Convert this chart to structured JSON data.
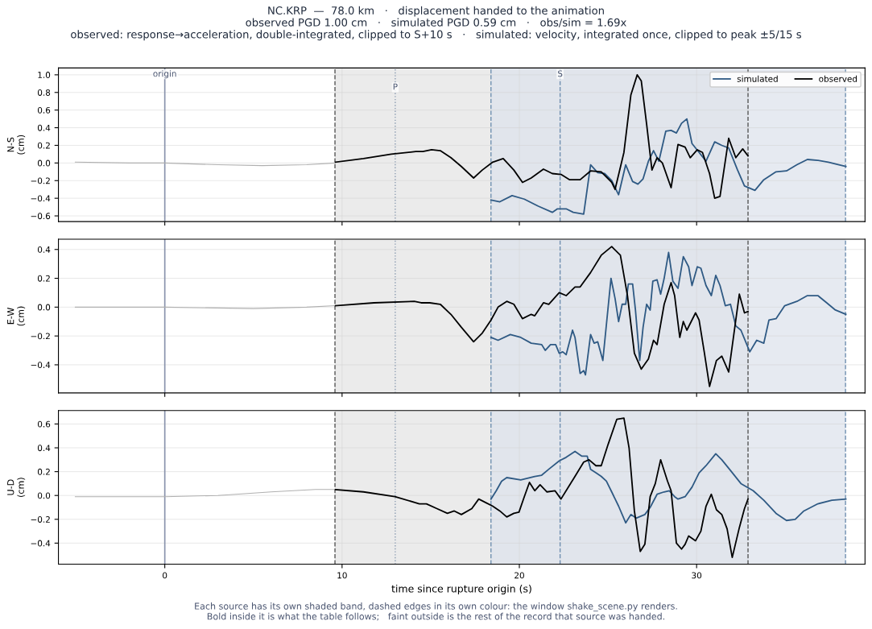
{
  "chart_data": [
    {
      "type": "line",
      "title": "NC.KRP  —  78.0 km   ·   displacement handed to the animation\nobserved PGD 1.00 cm   ·   simulated PGD 0.59 cm   ·   obs/sim = 1.69x\nobserved: response→acceleration, double-integrated, clipped to S+10 s   ·   simulated: velocity, integrated once, clipped to peak ±5/15 s",
      "ylabel": "N-S\n(cm)",
      "xlim": [
        -6.0,
        39.5
      ],
      "xticks": [
        0,
        10,
        20,
        30
      ],
      "ylim": [
        -0.665,
        1.078
      ],
      "yticks": [
        {
          "value": -0.6,
          "label": "−0.6"
        },
        {
          "value": -0.4,
          "label": "−0.4"
        },
        {
          "value": -0.2,
          "label": "−0.2"
        },
        {
          "value": 0,
          "label": "0.0"
        },
        {
          "value": 0.2,
          "label": "0.2"
        },
        {
          "value": 0.4,
          "label": "0.4"
        },
        {
          "value": 0.6,
          "label": "0.6"
        },
        {
          "value": 0.8,
          "label": "0.8"
        },
        {
          "value": 1,
          "label": "1.0"
        }
      ],
      "grid": true,
      "legend": "top right",
      "tick_labels": "y",
      "bands": [
        {
          "axis": "x",
          "from": 9.6,
          "to": 32.9,
          "color": "#e4e4e4"
        },
        {
          "axis": "x",
          "from": 18.4,
          "to": 38.4,
          "color": "#dde3ec"
        }
      ],
      "ref_lines": [
        {
          "axis": "x",
          "value": 0,
          "label": "origin",
          "color": "#8a94ad",
          "line_style": "solid"
        },
        {
          "axis": "x",
          "value": 13.0,
          "label": "P",
          "color": "#8a9bb0",
          "line_style": "dotted"
        },
        {
          "axis": "x",
          "value": 22.3,
          "label": "S",
          "color": "#6f8fb0",
          "line_style": "dashed"
        },
        {
          "axis": "x",
          "value": 9.6,
          "color": "#555555",
          "line_style": "dashed"
        },
        {
          "axis": "x",
          "value": 32.9,
          "color": "#555555",
          "line_style": "dashed"
        },
        {
          "axis": "x",
          "value": 18.4,
          "color": "#6f8fb0",
          "line_style": "dashed"
        },
        {
          "axis": "x",
          "value": 38.4,
          "color": "#6f8fb0",
          "line_style": "dashed"
        }
      ],
      "series": [
        {
          "color": "#b0b0b0",
          "x": [
            -5.05,
            -2,
            0,
            3,
            5.5,
            8,
            9.6
          ],
          "values": [
            0.01,
            0.0,
            0.0,
            -0.02,
            -0.03,
            -0.02,
            0.0
          ]
        },
        {
          "name": "simulated",
          "color": "#2f5a84",
          "x": [
            18.4,
            18.9,
            19.59,
            20.28,
            21.07,
            21.86,
            22.15,
            22.64,
            23.04,
            23.63,
            24.02,
            24.42,
            24.81,
            25.21,
            25.6,
            26.0,
            26.39,
            26.69,
            26.98,
            27.28,
            27.57,
            27.87,
            28.26,
            28.56,
            28.86,
            29.15,
            29.45,
            29.74,
            30.14,
            30.53,
            31.02,
            31.42,
            31.81,
            32.31,
            32.7,
            33.29,
            33.79,
            34.48,
            35.07,
            35.66,
            36.25,
            36.84,
            37.43,
            38.03,
            38.42
          ],
          "values": [
            -0.42,
            -0.44,
            -0.37,
            -0.41,
            -0.49,
            -0.56,
            -0.52,
            -0.52,
            -0.56,
            -0.58,
            -0.02,
            -0.11,
            -0.12,
            -0.2,
            -0.36,
            -0.02,
            -0.21,
            -0.24,
            -0.18,
            0.02,
            0.14,
            0.02,
            0.36,
            0.37,
            0.34,
            0.45,
            0.5,
            0.22,
            0.12,
            0.02,
            0.24,
            0.2,
            0.17,
            -0.08,
            -0.26,
            -0.31,
            -0.19,
            -0.1,
            -0.09,
            -0.02,
            0.04,
            0.03,
            0.01,
            -0.02,
            -0.04
          ]
        },
        {
          "name": "observed",
          "color": "#000000",
          "x": [
            9.63,
            11.21,
            12.78,
            14.16,
            14.56,
            15.05,
            15.54,
            16.14,
            16.73,
            17.42,
            17.91,
            18.5,
            19.09,
            19.69,
            20.18,
            20.67,
            21.36,
            21.86,
            22.35,
            22.84,
            23.43,
            24.02,
            24.62,
            25.21,
            25.4,
            25.9,
            26.29,
            26.65,
            26.88,
            27.18,
            27.48,
            27.77,
            28.07,
            28.56,
            28.95,
            29.35,
            29.64,
            30.04,
            30.33,
            30.73,
            31.02,
            31.32,
            31.81,
            32.21,
            32.6,
            32.9
          ],
          "values": [
            0.01,
            0.05,
            0.1,
            0.13,
            0.13,
            0.15,
            0.14,
            0.06,
            -0.04,
            -0.17,
            -0.08,
            0.01,
            0.05,
            -0.08,
            -0.22,
            -0.17,
            -0.07,
            -0.12,
            -0.13,
            -0.19,
            -0.19,
            -0.09,
            -0.1,
            -0.22,
            -0.3,
            0.12,
            0.77,
            1.0,
            0.93,
            0.44,
            -0.08,
            0.06,
            0.0,
            -0.28,
            0.21,
            0.18,
            0.06,
            0.15,
            0.12,
            -0.12,
            -0.4,
            -0.38,
            0.28,
            0.06,
            0.16,
            0.08
          ]
        }
      ]
    },
    {
      "type": "line",
      "ylabel": "E-W\n(cm)",
      "xlim": [
        -6.0,
        39.5
      ],
      "xticks": [
        0,
        10,
        20,
        30
      ],
      "ylim": [
        -0.595,
        0.471
      ],
      "yticks": [
        {
          "value": -0.4,
          "label": "−0.4"
        },
        {
          "value": -0.2,
          "label": "−0.2"
        },
        {
          "value": 0,
          "label": "0.0"
        },
        {
          "value": 0.2,
          "label": "0.2"
        },
        {
          "value": 0.4,
          "label": "0.4"
        }
      ],
      "grid": true,
      "tick_labels": "y",
      "bands": [
        {
          "axis": "x",
          "from": 9.6,
          "to": 32.9,
          "color": "#e4e4e4"
        },
        {
          "axis": "x",
          "from": 18.4,
          "to": 38.4,
          "color": "#dde3ec"
        }
      ],
      "ref_lines": [
        {
          "axis": "x",
          "value": 0,
          "color": "#8a94ad",
          "line_style": "solid"
        },
        {
          "axis": "x",
          "value": 13.0,
          "color": "#8a9bb0",
          "line_style": "dotted"
        },
        {
          "axis": "x",
          "value": 22.3,
          "color": "#6f8fb0",
          "line_style": "dashed"
        },
        {
          "axis": "x",
          "value": 9.6,
          "color": "#555555",
          "line_style": "dashed"
        },
        {
          "axis": "x",
          "value": 32.9,
          "color": "#555555",
          "line_style": "dashed"
        },
        {
          "axis": "x",
          "value": 18.4,
          "color": "#6f8fb0",
          "line_style": "dashed"
        },
        {
          "axis": "x",
          "value": 38.4,
          "color": "#6f8fb0",
          "line_style": "dashed"
        }
      ],
      "series": [
        {
          "color": "#b0b0b0",
          "x": [
            -5.05,
            0,
            5,
            8,
            9.6
          ],
          "values": [
            0.0,
            0.0,
            -0.01,
            0.0,
            0.01
          ]
        },
        {
          "color": "#2f5a84",
          "x": [
            18.4,
            18.8,
            19.49,
            20.08,
            20.67,
            21.26,
            21.46,
            21.76,
            22.05,
            22.25,
            22.45,
            22.64,
            23.0,
            23.14,
            23.43,
            23.63,
            23.73,
            24.02,
            24.22,
            24.42,
            24.71,
            25.17,
            25.4,
            25.6,
            25.8,
            26.0,
            26.15,
            26.39,
            26.55,
            26.79,
            26.98,
            27.18,
            27.38,
            27.53,
            27.77,
            27.97,
            28.17,
            28.42,
            28.66,
            28.95,
            29.25,
            29.55,
            29.74,
            30.04,
            30.24,
            30.53,
            30.83,
            31.08,
            31.32,
            31.62,
            31.91,
            32.21,
            32.5,
            33.0,
            33.39,
            33.79,
            34.08,
            34.48,
            34.97,
            35.66,
            36.25,
            36.84,
            37.34,
            37.83,
            38.42
          ],
          "values": [
            -0.21,
            -0.23,
            -0.19,
            -0.21,
            -0.25,
            -0.26,
            -0.3,
            -0.26,
            -0.26,
            -0.32,
            -0.31,
            -0.33,
            -0.16,
            -0.21,
            -0.46,
            -0.44,
            -0.47,
            -0.19,
            -0.25,
            -0.24,
            -0.37,
            0.2,
            0.06,
            -0.1,
            0.02,
            0.02,
            0.16,
            0.16,
            -0.02,
            -0.37,
            -0.14,
            0.02,
            -0.02,
            0.18,
            0.19,
            0.09,
            0.2,
            0.38,
            0.18,
            0.13,
            0.35,
            0.28,
            0.15,
            0.28,
            0.27,
            0.15,
            0.08,
            0.22,
            0.15,
            0.01,
            0.02,
            -0.13,
            -0.16,
            -0.31,
            -0.23,
            -0.25,
            -0.09,
            -0.08,
            0.01,
            0.04,
            0.08,
            0.08,
            0.03,
            -0.02,
            -0.05
          ]
        },
        {
          "color": "#000000",
          "x": [
            9.63,
            11.8,
            14.07,
            14.46,
            14.95,
            15.54,
            16.14,
            16.73,
            17.42,
            17.91,
            18.4,
            18.8,
            19.29,
            19.69,
            20.18,
            20.67,
            20.87,
            21.36,
            21.66,
            22.25,
            22.64,
            23.14,
            23.43,
            24.02,
            24.62,
            25.21,
            25.7,
            26.1,
            26.49,
            26.88,
            27.28,
            27.57,
            27.77,
            28.17,
            28.56,
            28.76,
            29.05,
            29.25,
            29.45,
            29.94,
            30.14,
            30.43,
            30.73,
            31.12,
            31.42,
            31.81,
            32.41,
            32.7,
            32.9
          ],
          "values": [
            0.01,
            0.03,
            0.04,
            0.03,
            0.03,
            0.02,
            -0.05,
            -0.14,
            -0.24,
            -0.18,
            -0.09,
            0.0,
            0.04,
            0.02,
            -0.08,
            -0.05,
            -0.06,
            0.03,
            0.02,
            0.1,
            0.08,
            0.14,
            0.14,
            0.24,
            0.36,
            0.42,
            0.36,
            0.08,
            -0.32,
            -0.43,
            -0.36,
            -0.23,
            -0.26,
            0.02,
            0.17,
            0.08,
            -0.21,
            -0.1,
            -0.16,
            -0.04,
            -0.09,
            -0.31,
            -0.55,
            -0.37,
            -0.34,
            -0.45,
            0.09,
            -0.04,
            -0.03
          ]
        }
      ]
    },
    {
      "type": "line",
      "ylabel": "U-D\n(cm)",
      "xlabel": "time since rupture origin (s)",
      "xlim": [
        -6.0,
        39.5
      ],
      "xticks": [
        0,
        10,
        20,
        30
      ],
      "ylim": [
        -0.577,
        0.713
      ],
      "yticks": [
        {
          "value": -0.4,
          "label": "−0.4"
        },
        {
          "value": -0.2,
          "label": "−0.2"
        },
        {
          "value": 0,
          "label": "0.0"
        },
        {
          "value": 0.2,
          "label": "0.2"
        },
        {
          "value": 0.4,
          "label": "0.4"
        },
        {
          "value": 0.6,
          "label": "0.6"
        }
      ],
      "grid": true,
      "annotations": [
        "Each source has its own shaded band, dashed edges in its own colour: the window shake_scene.py renders.\nBold inside it is what the table follows;   faint outside is the rest of the record that source was handed."
      ],
      "bands": [
        {
          "axis": "x",
          "from": 9.6,
          "to": 32.9,
          "color": "#e4e4e4"
        },
        {
          "axis": "x",
          "from": 18.4,
          "to": 38.4,
          "color": "#dde3ec"
        }
      ],
      "ref_lines": [
        {
          "axis": "x",
          "value": 0,
          "color": "#8a94ad",
          "line_style": "solid"
        },
        {
          "axis": "x",
          "value": 13.0,
          "color": "#8a9bb0",
          "line_style": "dotted"
        },
        {
          "axis": "x",
          "value": 22.3,
          "color": "#6f8fb0",
          "line_style": "dashed"
        },
        {
          "axis": "x",
          "value": 9.6,
          "color": "#555555",
          "line_style": "dashed"
        },
        {
          "axis": "x",
          "value": 32.9,
          "color": "#555555",
          "line_style": "dashed"
        },
        {
          "axis": "x",
          "value": 18.4,
          "color": "#6f8fb0",
          "line_style": "dashed"
        },
        {
          "axis": "x",
          "value": 38.4,
          "color": "#6f8fb0",
          "line_style": "dashed"
        }
      ],
      "series": [
        {
          "color": "#b0b0b0",
          "x": [
            -5.05,
            0,
            3,
            6,
            8.5,
            9.6
          ],
          "values": [
            -0.01,
            -0.01,
            0.0,
            0.03,
            0.05,
            0.05
          ]
        },
        {
          "color": "#2f5a84",
          "x": [
            18.4,
            18.7,
            19.0,
            19.29,
            20.08,
            20.87,
            21.26,
            21.66,
            22.25,
            22.64,
            23.14,
            23.53,
            23.83,
            24.02,
            24.32,
            24.62,
            24.91,
            25.21,
            25.6,
            26.0,
            26.29,
            26.59,
            27.08,
            27.38,
            27.77,
            28.17,
            28.46,
            28.76,
            28.95,
            29.35,
            29.74,
            30.14,
            30.53,
            31.08,
            31.42,
            31.91,
            32.5,
            33.19,
            33.79,
            34.48,
            35.07,
            35.56,
            36.05,
            36.84,
            37.63,
            38.42
          ],
          "values": [
            -0.03,
            0.04,
            0.12,
            0.15,
            0.13,
            0.16,
            0.17,
            0.22,
            0.29,
            0.32,
            0.37,
            0.33,
            0.33,
            0.22,
            0.19,
            0.16,
            0.12,
            0.03,
            -0.09,
            -0.23,
            -0.16,
            -0.19,
            -0.16,
            -0.1,
            0.01,
            0.03,
            0.04,
            -0.01,
            -0.03,
            -0.01,
            0.07,
            0.19,
            0.25,
            0.35,
            0.3,
            0.21,
            0.1,
            0.04,
            -0.04,
            -0.15,
            -0.21,
            -0.2,
            -0.13,
            -0.07,
            -0.04,
            -0.03
          ]
        },
        {
          "color": "#000000",
          "x": [
            9.63,
            11.21,
            12.98,
            14.36,
            14.76,
            15.35,
            15.94,
            16.33,
            16.73,
            17.32,
            17.71,
            18.11,
            18.5,
            18.9,
            19.29,
            19.69,
            19.98,
            20.28,
            20.57,
            20.87,
            21.17,
            21.56,
            22.01,
            22.35,
            22.64,
            23.14,
            23.63,
            23.93,
            24.32,
            24.62,
            25.01,
            25.5,
            25.9,
            26.19,
            26.49,
            26.82,
            27.08,
            27.38,
            27.67,
            27.97,
            28.36,
            28.56,
            28.86,
            29.15,
            29.35,
            29.55,
            29.94,
            30.24,
            30.53,
            30.83,
            31.12,
            31.42,
            31.72,
            32.01,
            32.41,
            32.7,
            32.9
          ],
          "values": [
            0.05,
            0.03,
            -0.01,
            -0.07,
            -0.07,
            -0.11,
            -0.15,
            -0.13,
            -0.16,
            -0.11,
            -0.03,
            -0.06,
            -0.09,
            -0.13,
            -0.18,
            -0.15,
            -0.14,
            -0.01,
            0.11,
            0.04,
            0.09,
            0.03,
            0.04,
            -0.03,
            0.04,
            0.16,
            0.28,
            0.3,
            0.25,
            0.25,
            0.43,
            0.64,
            0.65,
            0.4,
            -0.13,
            -0.47,
            -0.41,
            -0.01,
            0.1,
            0.3,
            0.12,
            0.04,
            -0.4,
            -0.45,
            -0.41,
            -0.34,
            -0.38,
            -0.3,
            -0.09,
            0.01,
            -0.12,
            -0.16,
            -0.28,
            -0.52,
            -0.27,
            -0.11,
            -0.03
          ]
        }
      ]
    }
  ]
}
